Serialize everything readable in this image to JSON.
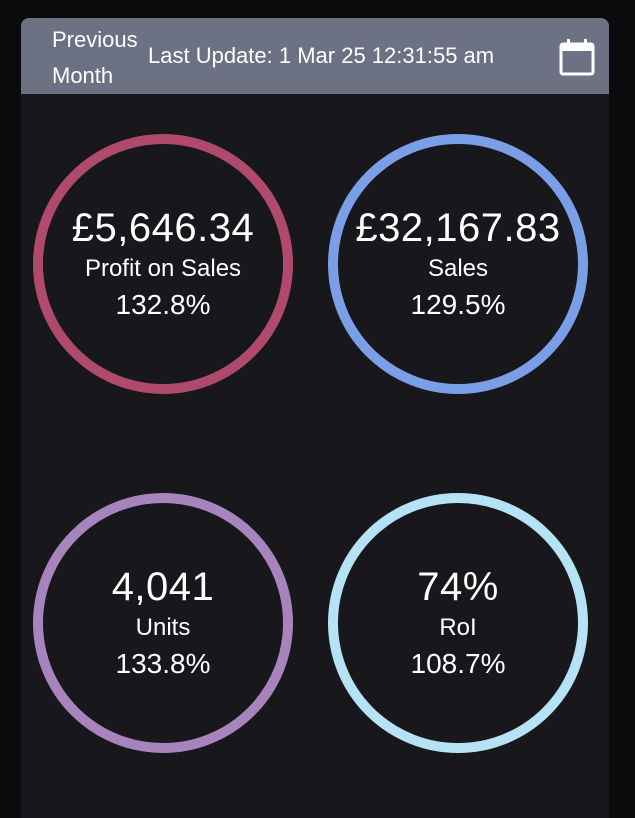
{
  "header": {
    "period_label": "Previous Month",
    "last_update": "Last Update: 1 Mar 25 12:31:55 am",
    "calendar_icon": "calendar-icon",
    "background_color": "#6c7284"
  },
  "metrics": [
    {
      "value": "£5,646.34",
      "label": "Profit on Sales",
      "change": "132.8%",
      "ring_color": "#b04a6c"
    },
    {
      "value": "£32,167.83",
      "label": "Sales",
      "change": "129.5%",
      "ring_color": "#7b9fe6"
    },
    {
      "value": "4,041",
      "label": "Units",
      "change": "133.8%",
      "ring_color": "#a784bc"
    },
    {
      "value": "74%",
      "label": "RoI",
      "change": "108.7%",
      "ring_color": "#b6e2f5"
    }
  ]
}
